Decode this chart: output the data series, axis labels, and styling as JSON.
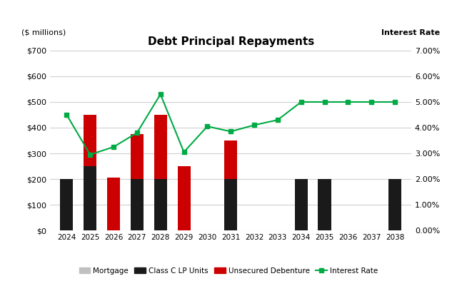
{
  "title": "Debt Principal Repayments",
  "ylabel_left": "($ millions)",
  "ylabel_right": "Interest Rate",
  "years": [
    2024,
    2025,
    2026,
    2027,
    2028,
    2029,
    2030,
    2031,
    2032,
    2033,
    2034,
    2035,
    2036,
    2037,
    2038
  ],
  "mortgage": [
    0,
    0,
    0,
    0,
    0,
    0,
    0,
    0,
    0,
    0,
    0,
    0,
    0,
    0,
    0
  ],
  "class_c": [
    200,
    250,
    0,
    200,
    200,
    0,
    0,
    200,
    0,
    0,
    200,
    200,
    0,
    0,
    200
  ],
  "unsecured": [
    0,
    200,
    205,
    175,
    250,
    250,
    0,
    150,
    0,
    0,
    0,
    0,
    0,
    0,
    0
  ],
  "interest_rate": [
    4.5,
    2.95,
    3.25,
    3.8,
    5.3,
    3.05,
    4.05,
    3.85,
    4.1,
    4.3,
    5.0,
    5.0,
    5.0,
    5.0,
    5.0
  ],
  "bar_color_mortgage": "#c0c0c0",
  "bar_color_class_c": "#1a1a1a",
  "bar_color_unsecured": "#cc0000",
  "line_color": "#00aa44",
  "ylim_left": [
    0,
    700
  ],
  "ylim_right": [
    0,
    7.0
  ],
  "yticks_left": [
    0,
    100,
    200,
    300,
    400,
    500,
    600,
    700
  ],
  "yticks_right": [
    0.0,
    1.0,
    2.0,
    3.0,
    4.0,
    5.0,
    6.0,
    7.0
  ],
  "background_color": "#ffffff",
  "grid_color": "#d0d0d0",
  "bar_width": 0.55
}
